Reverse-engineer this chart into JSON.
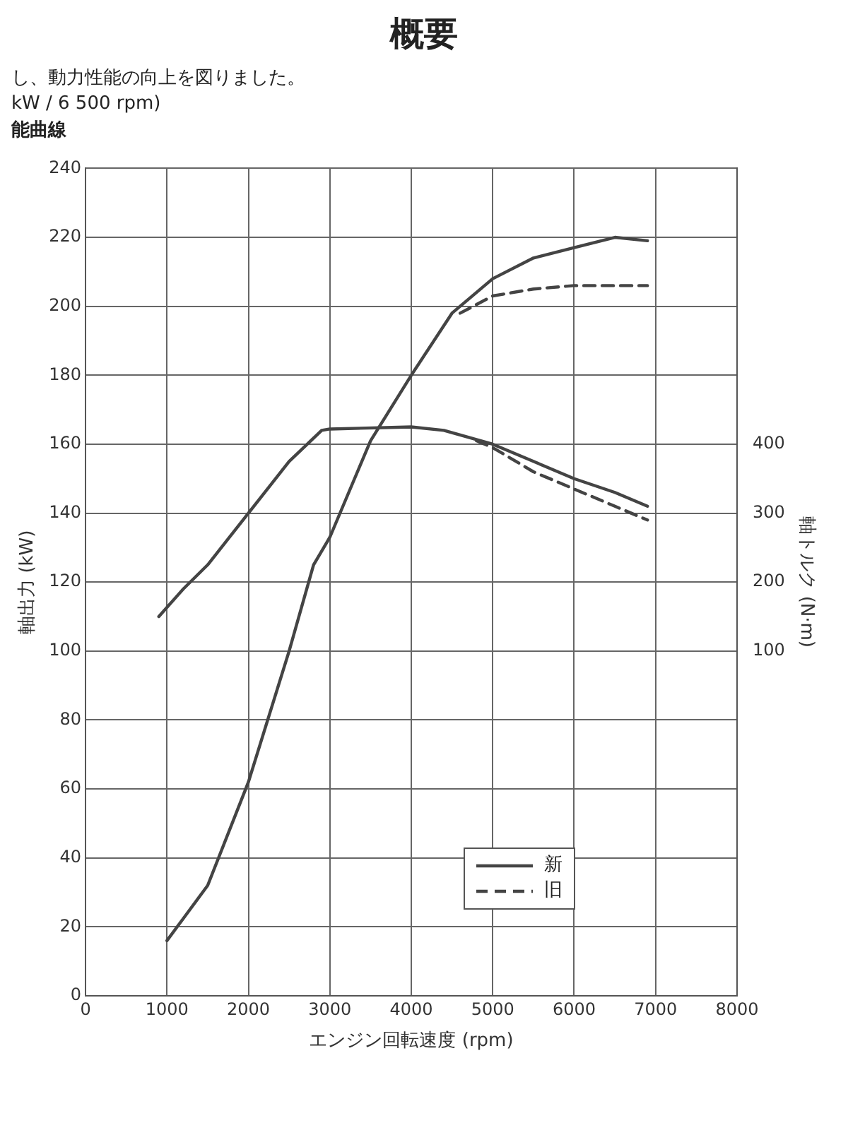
{
  "chart_data": {
    "type": "line",
    "title": "概要",
    "annotations": [
      "し、動力性能の向上を図りました。",
      "kW / 6 500 rpm)",
      "能曲線"
    ],
    "xlabel": "エンジン回転速度 (rpm)",
    "ylabel": "軸出力 (kW)",
    "y2label": "軸トルク (N·m)",
    "xlim": [
      0,
      8000
    ],
    "xticks": [
      0,
      1000,
      2000,
      3000,
      4000,
      5000,
      6000,
      7000,
      8000
    ],
    "ylim": [
      0,
      240
    ],
    "yticks": [
      0,
      20,
      40,
      60,
      80,
      100,
      120,
      140,
      160,
      180,
      200,
      220,
      240
    ],
    "y2lim": [
      -400,
      800
    ],
    "y2ticks": [
      100,
      200,
      300,
      400
    ],
    "grid": true,
    "legend": "bottom right",
    "marker": "none",
    "series": [
      {
        "name": "新",
        "color": "#444444",
        "line_style": "solid",
        "x": [
          1000,
          1500,
          2000,
          2500,
          2800,
          3000,
          3500,
          4000,
          4500,
          5000,
          5500,
          6000,
          6500,
          6900
        ],
        "values": [
          16,
          32,
          62,
          100,
          125,
          133,
          161,
          180,
          198,
          208,
          214,
          217,
          220,
          219
        ]
      },
      {
        "name": "旧",
        "color": "#444444",
        "line_style": "dashed",
        "x": [
          4600,
          5000,
          5500,
          6000,
          6500,
          6900
        ],
        "values": [
          198,
          203,
          205,
          206,
          206,
          206
        ]
      },
      {
        "color": "#444444",
        "line_style": "solid",
        "axis": "y2",
        "x": [
          900,
          1200,
          1500,
          2000,
          2500,
          2900,
          3000,
          4000,
          4400,
          5000,
          5500,
          6000,
          6500,
          6900
        ],
        "values": [
          150,
          190,
          225,
          300,
          375,
          420,
          422,
          425,
          420,
          400,
          375,
          350,
          330,
          310
        ]
      },
      {
        "color": "#444444",
        "line_style": "dashed",
        "axis": "y2",
        "x": [
          4800,
          5000,
          5500,
          6000,
          6500,
          6900
        ],
        "values": [
          405,
          395,
          360,
          335,
          310,
          290
        ]
      }
    ]
  }
}
